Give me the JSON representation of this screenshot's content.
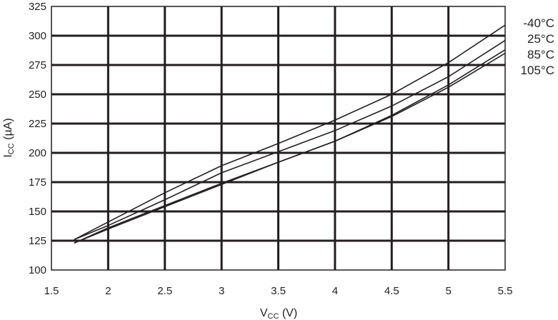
{
  "chart_data": {
    "type": "line",
    "title": "",
    "xlabel": {
      "main": "V",
      "sub": "CC",
      "unit": " (V)"
    },
    "ylabel": {
      "main": "I",
      "sub": "CC",
      "unit": " (µA)"
    },
    "xlim": [
      1.5,
      5.5
    ],
    "ylim": [
      100,
      325
    ],
    "xticks": [
      "1.5",
      "2",
      "2.5",
      "3",
      "3.5",
      "4",
      "4.5",
      "5",
      "5.5"
    ],
    "yticks": [
      "100",
      "125",
      "150",
      "175",
      "200",
      "225",
      "250",
      "275",
      "300",
      "325"
    ],
    "grid": true,
    "legend_position": "right",
    "series": [
      {
        "name": "-40°C",
        "x": [
          1.7,
          2.0,
          2.5,
          3.0,
          3.5,
          4.0,
          4.5,
          5.0,
          5.5
        ],
        "values": [
          126,
          141,
          166,
          189,
          208,
          228,
          250,
          277,
          309
        ]
      },
      {
        "name": "25°C",
        "x": [
          1.7,
          2.0,
          2.5,
          3.0,
          3.5,
          4.0,
          4.5,
          5.0,
          5.5
        ],
        "values": [
          126,
          138,
          160,
          183,
          201,
          219,
          240,
          265,
          296
        ]
      },
      {
        "name": "85°C",
        "x": [
          1.7,
          2.0,
          2.5,
          3.0,
          3.5,
          4.0,
          4.5,
          5.0,
          5.5
        ],
        "values": [
          123,
          136,
          155,
          174,
          192,
          210,
          232,
          258,
          288
        ]
      },
      {
        "name": "105°C",
        "x": [
          1.7,
          2.0,
          2.5,
          3.0,
          3.5,
          4.0,
          4.5,
          5.0,
          5.5
        ],
        "values": [
          123,
          135,
          154,
          173,
          192,
          210,
          231,
          256,
          285
        ]
      }
    ]
  }
}
